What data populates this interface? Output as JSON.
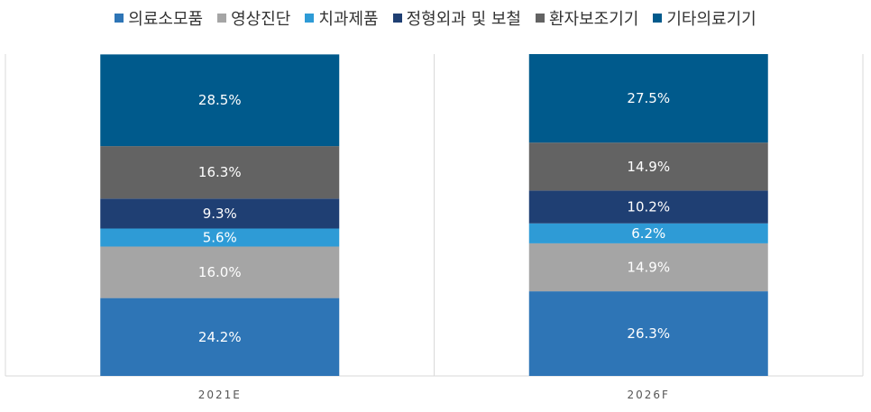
{
  "chart_data": {
    "type": "bar",
    "stacked": true,
    "categories": [
      "2021E",
      "2026F"
    ],
    "series": [
      {
        "name": "의료소모품",
        "values": [
          24.2,
          26.3
        ],
        "color": "#2e75b6"
      },
      {
        "name": "영상진단",
        "values": [
          16.0,
          14.9
        ],
        "color": "#a5a5a5"
      },
      {
        "name": "치과제품",
        "values": [
          5.6,
          6.2
        ],
        "color": "#2e9bd6"
      },
      {
        "name": "정형외과 및 보철",
        "values": [
          9.3,
          10.2
        ],
        "color": "#1f3f73"
      },
      {
        "name": "환자보조기기",
        "values": [
          16.3,
          14.9
        ],
        "color": "#636363"
      },
      {
        "name": "기타의료기기",
        "values": [
          28.5,
          27.5
        ],
        "color": "#005a8c"
      }
    ],
    "data_labels": [
      [
        "24.2%",
        "26.3%"
      ],
      [
        "16.0%",
        "14.9%"
      ],
      [
        "5.6%",
        "6.2%"
      ],
      [
        "9.3%",
        "10.2%"
      ],
      [
        "16.3%",
        "14.9%"
      ],
      [
        "28.5%",
        "27.5%"
      ]
    ],
    "ylim": [
      0,
      100
    ],
    "grid": false,
    "legend_position": "top"
  }
}
